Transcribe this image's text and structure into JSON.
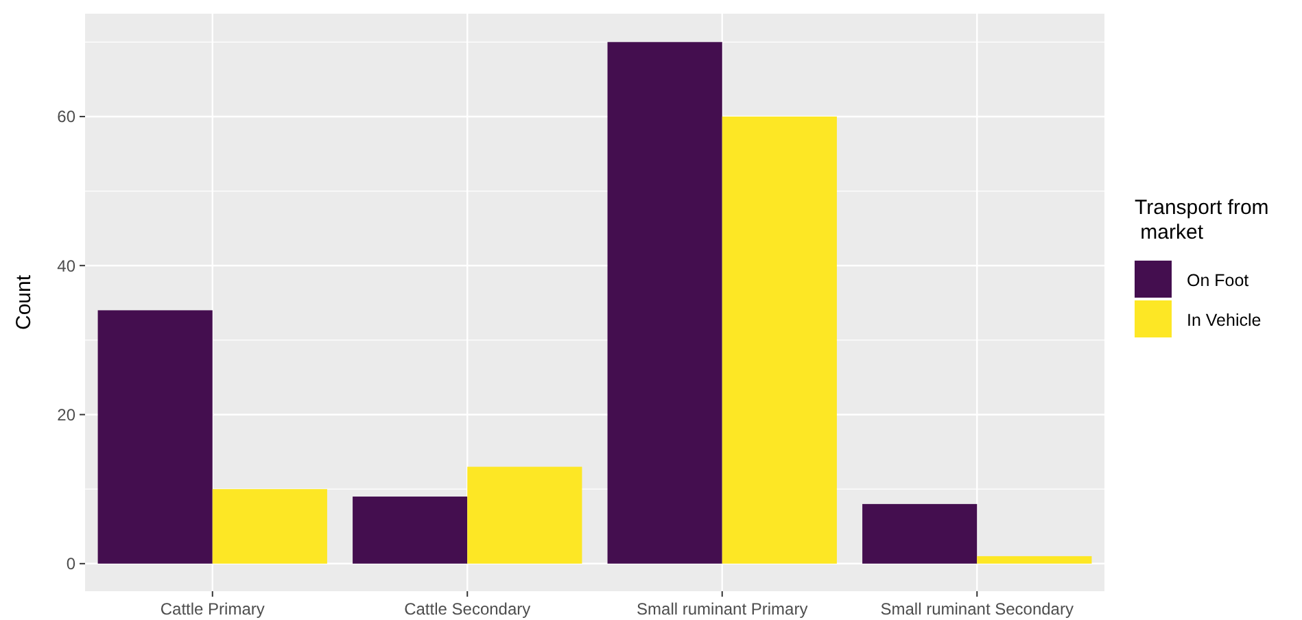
{
  "chart_data": {
    "type": "bar",
    "ylabel": "Count",
    "legend_title": "Transport from\n market",
    "categories": [
      "Cattle Primary",
      "Cattle Secondary",
      "Small ruminant Primary",
      "Small ruminant Secondary"
    ],
    "series": [
      {
        "name": "On Foot",
        "color": "#440e4f",
        "values": [
          34,
          9,
          70,
          8
        ]
      },
      {
        "name": "In Vehicle",
        "color": "#fde725",
        "values": [
          10,
          13,
          60,
          1
        ]
      }
    ],
    "ylim": [
      -3.7,
      73.8
    ],
    "yticks": [
      0,
      20,
      40,
      60
    ],
    "grid": true,
    "legend": "right"
  }
}
